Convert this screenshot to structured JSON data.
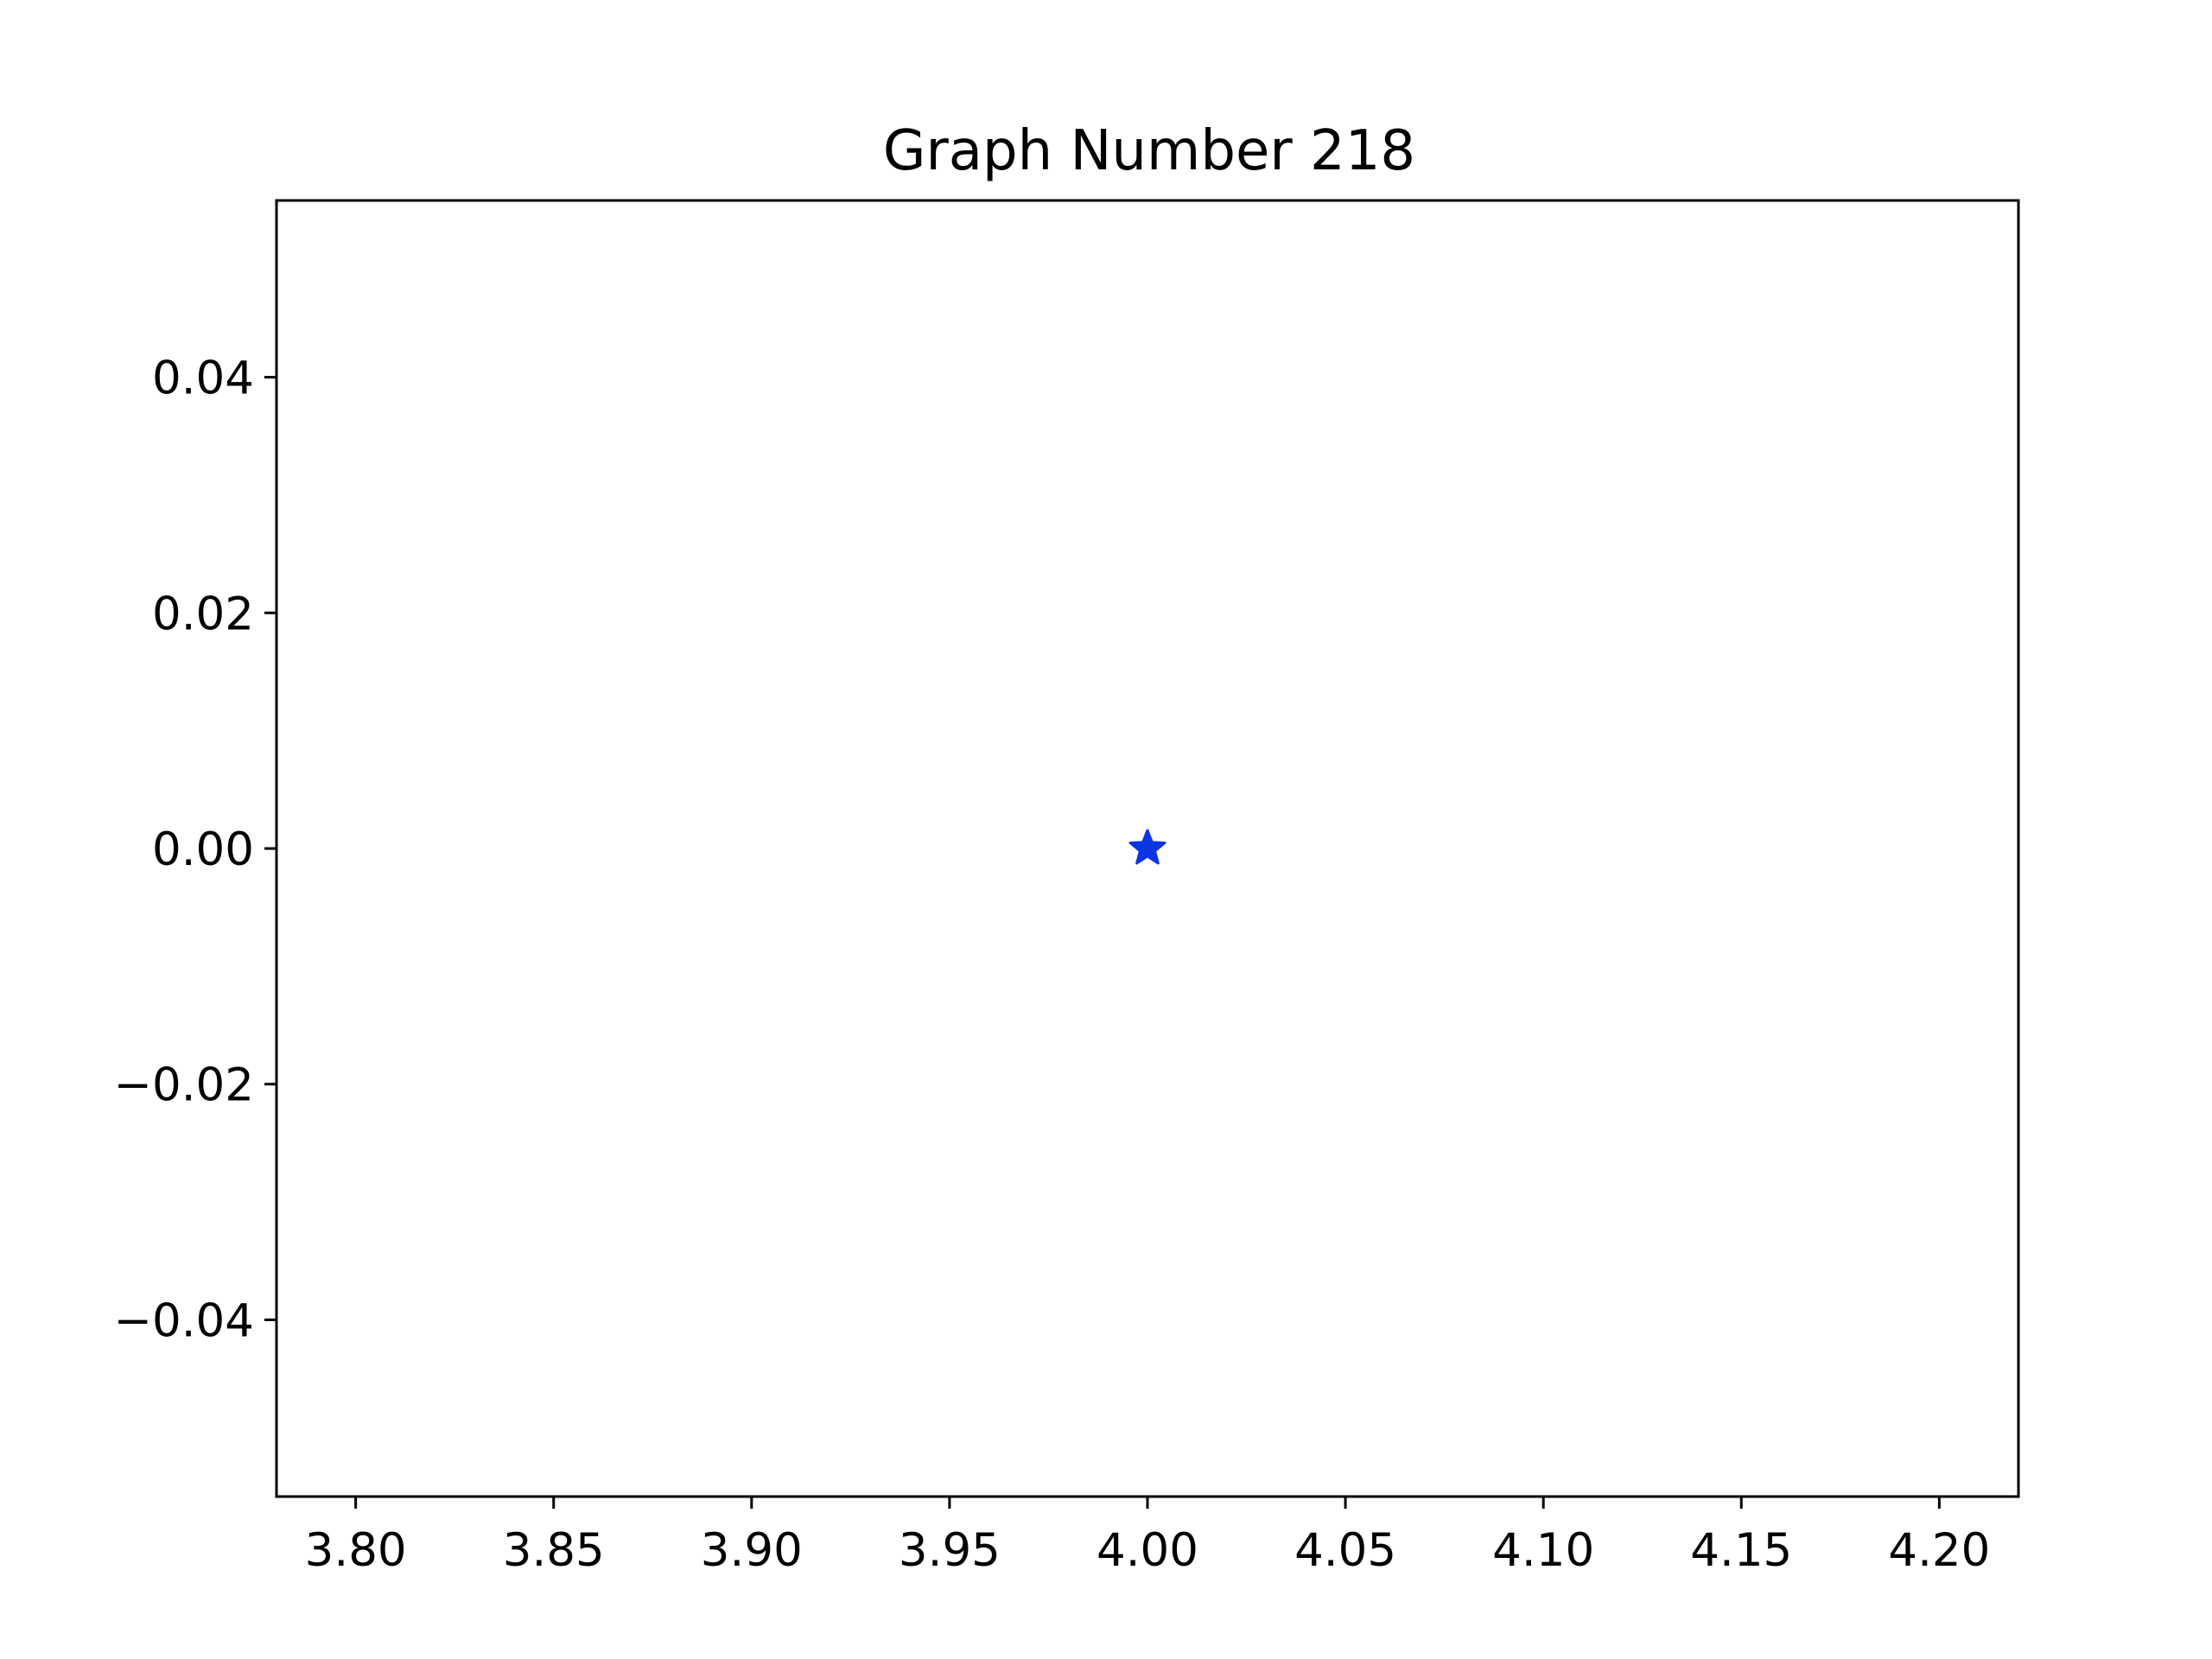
{
  "chart_data": {
    "type": "scatter",
    "title": "Graph Number 218",
    "xlabel": "",
    "ylabel": "",
    "xlim": [
      3.78,
      4.22
    ],
    "ylim": [
      -0.055,
      0.055
    ],
    "x_ticks": [
      {
        "value": 3.8,
        "label": "3.80"
      },
      {
        "value": 3.85,
        "label": "3.85"
      },
      {
        "value": 3.9,
        "label": "3.90"
      },
      {
        "value": 3.95,
        "label": "3.95"
      },
      {
        "value": 4.0,
        "label": "4.00"
      },
      {
        "value": 4.05,
        "label": "4.05"
      },
      {
        "value": 4.1,
        "label": "4.10"
      },
      {
        "value": 4.15,
        "label": "4.15"
      },
      {
        "value": 4.2,
        "label": "4.20"
      }
    ],
    "y_ticks": [
      {
        "value": 0.04,
        "label": "0.04"
      },
      {
        "value": 0.02,
        "label": "0.02"
      },
      {
        "value": 0.0,
        "label": "0.00"
      },
      {
        "value": -0.02,
        "label": "−0.02"
      },
      {
        "value": -0.04,
        "label": "−0.04"
      }
    ],
    "series": [
      {
        "marker": "star",
        "color": "#0b35e4",
        "points": [
          {
            "x": 4.0,
            "y": 0.0
          }
        ]
      }
    ],
    "grid": false,
    "legend": "none"
  }
}
